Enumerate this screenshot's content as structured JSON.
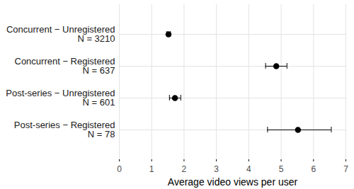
{
  "chart_data": {
    "type": "dot",
    "orientation": "horizontal",
    "categories": [
      "Concurrent − Unregistered\nN = 3210",
      "Concurrent − Registered\nN = 637",
      "Post-series − Unregistered\nN = 601",
      "Post-series − Registered\nN = 78"
    ],
    "values": [
      1.52,
      4.85,
      1.72,
      5.52
    ],
    "ci_low": [
      1.47,
      4.52,
      1.55,
      4.58
    ],
    "ci_high": [
      1.58,
      5.18,
      1.9,
      6.55
    ],
    "x_label": "Average video views per user",
    "xlim": [
      0,
      7
    ],
    "xticks": [
      0,
      1,
      2,
      3,
      4,
      5,
      6,
      7
    ],
    "color": "#000000",
    "grid": true
  }
}
